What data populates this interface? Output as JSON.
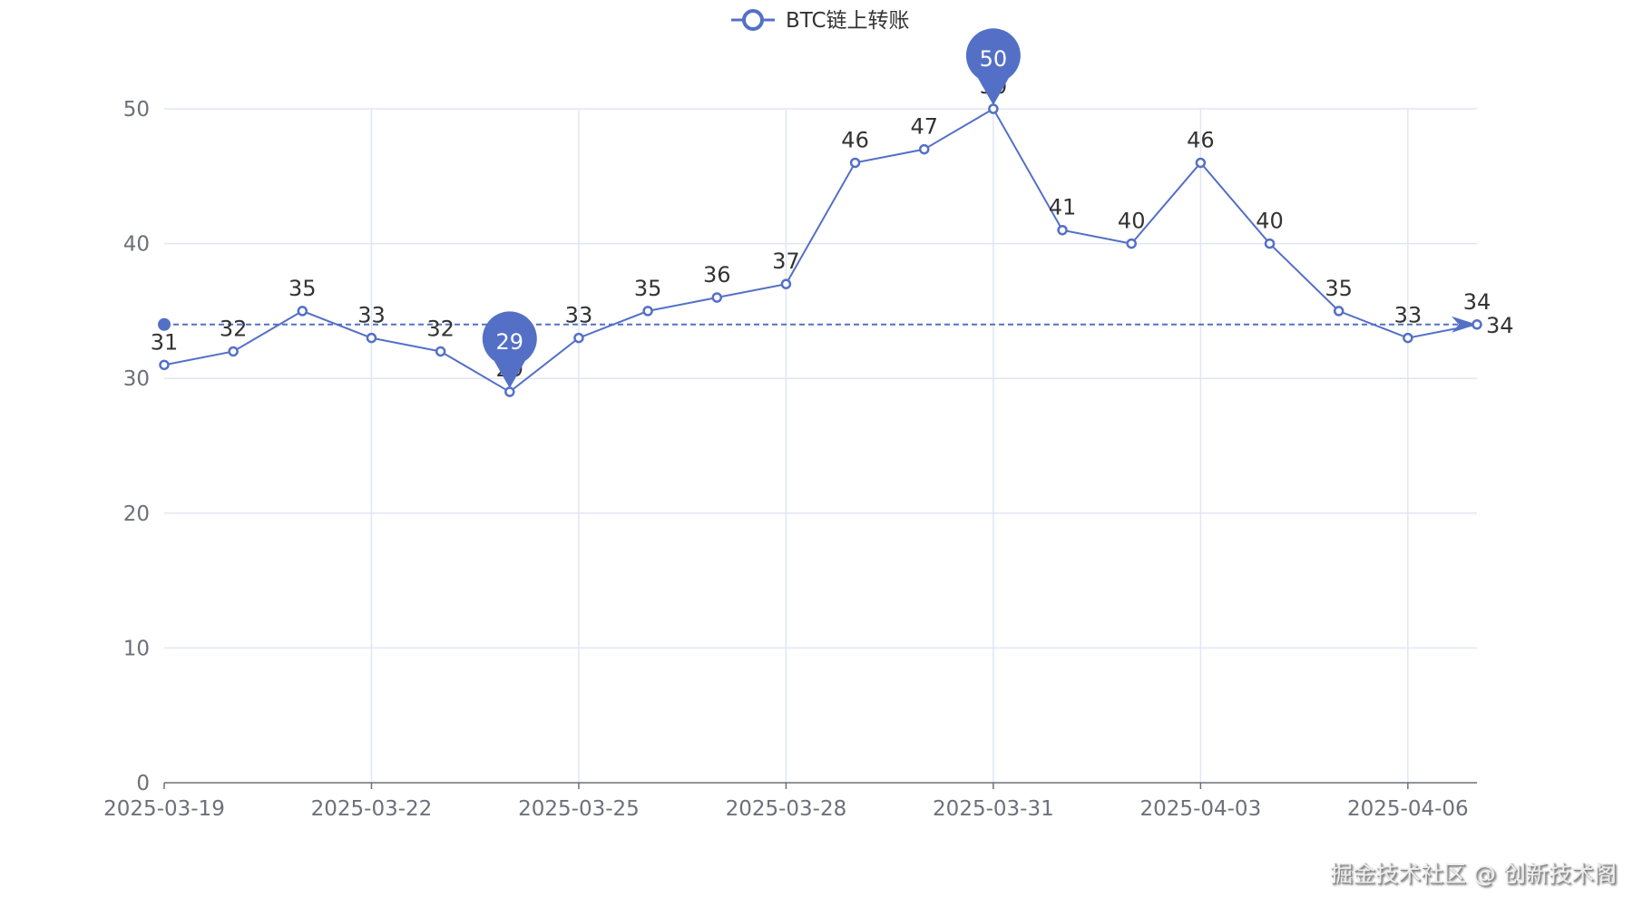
{
  "chart_data": {
    "type": "line",
    "legend": {
      "label": "BTC链上转账",
      "position": "top-center"
    },
    "x": [
      "2025-03-19",
      "2025-03-20",
      "2025-03-21",
      "2025-03-22",
      "2025-03-23",
      "2025-03-24",
      "2025-03-25",
      "2025-03-26",
      "2025-03-27",
      "2025-03-28",
      "2025-03-29",
      "2025-03-30",
      "2025-03-31",
      "2025-04-01",
      "2025-04-02",
      "2025-04-03",
      "2025-04-04",
      "2025-04-05",
      "2025-04-06",
      "2025-04-07"
    ],
    "values": [
      31,
      32,
      35,
      33,
      32,
      29,
      33,
      35,
      36,
      37,
      46,
      47,
      50,
      41,
      40,
      46,
      40,
      35,
      33,
      34
    ],
    "ylim": [
      0,
      50
    ],
    "yticks": [
      "0",
      "10",
      "20",
      "30",
      "40",
      "50"
    ],
    "xtick_every": 3,
    "mark_points": {
      "max": "50",
      "min": "29"
    },
    "mark_line": {
      "value": 34,
      "label": "34"
    },
    "grid": true,
    "color": "#5470c6"
  },
  "watermark": "掘金技术社区 @ 创新技术阁"
}
